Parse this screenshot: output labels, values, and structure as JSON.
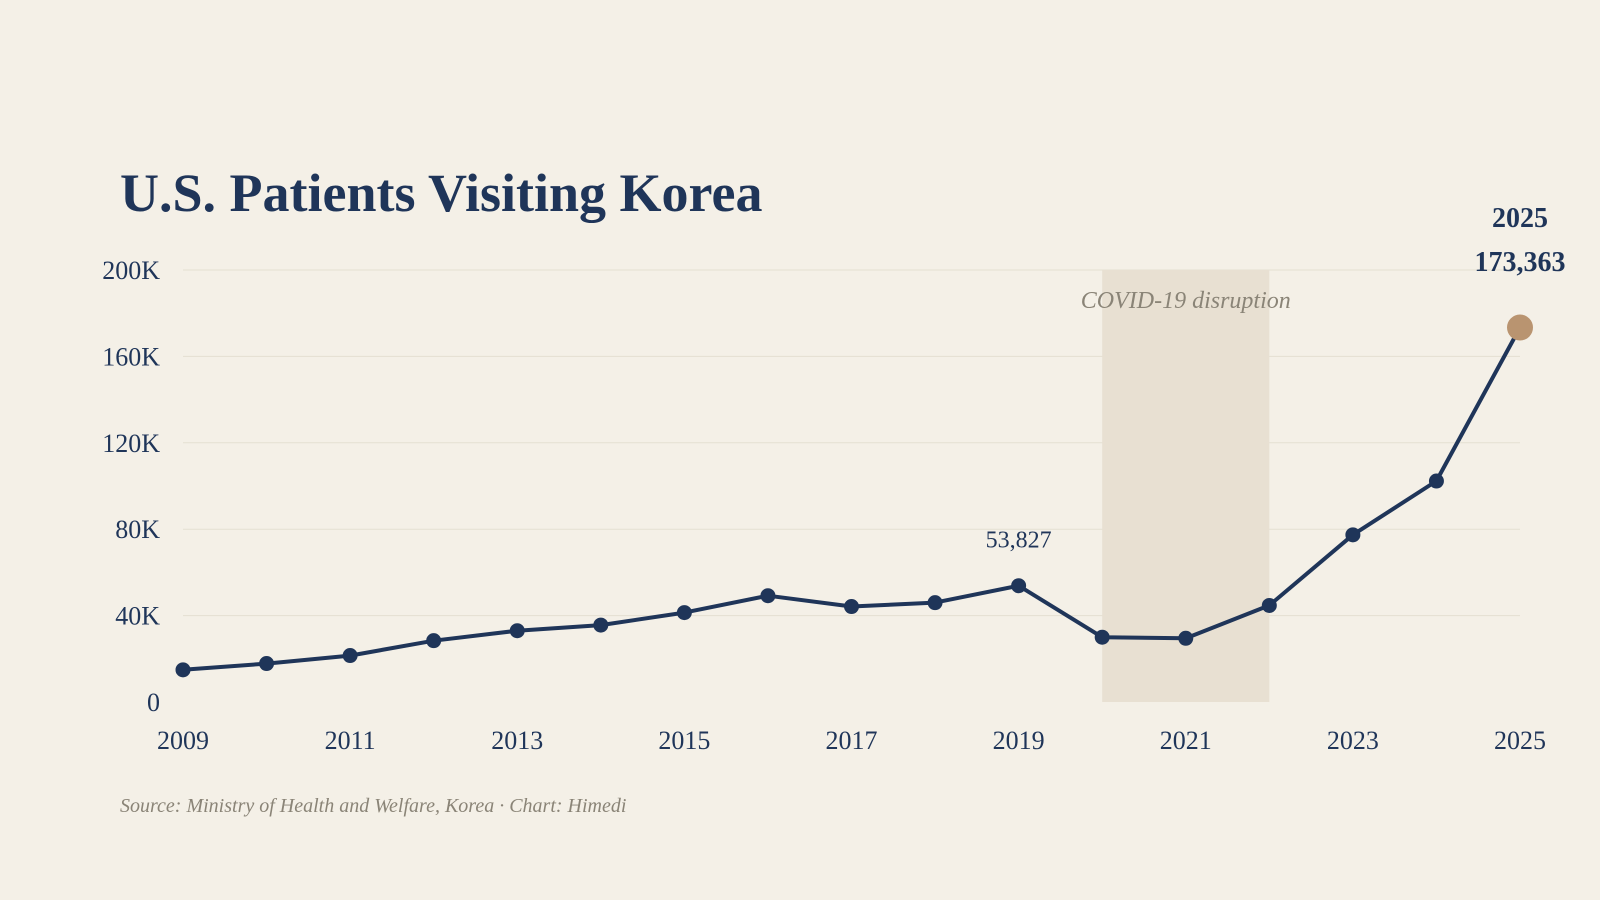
{
  "chart_data": {
    "type": "line",
    "title": "U.S. Patients Visiting Korea",
    "x": [
      2009,
      2010,
      2011,
      2012,
      2013,
      2014,
      2015,
      2016,
      2017,
      2018,
      2019,
      2020,
      2021,
      2022,
      2023,
      2024,
      2025
    ],
    "values": [
      14900,
      17800,
      21500,
      28400,
      33000,
      35600,
      41400,
      49200,
      44200,
      46000,
      53827,
      30000,
      29500,
      44700,
      77400,
      102300,
      173363
    ],
    "ylim": [
      0,
      200000
    ],
    "yticks": [
      0,
      40000,
      80000,
      120000,
      160000,
      200000
    ],
    "ytick_labels": [
      "0",
      "40K",
      "80K",
      "120K",
      "160K",
      "200K"
    ],
    "xticks": [
      2009,
      2011,
      2013,
      2015,
      2017,
      2019,
      2021,
      2023,
      2025
    ],
    "xtick_labels": [
      "2009",
      "2011",
      "2013",
      "2015",
      "2017",
      "2019",
      "2021",
      "2023",
      "2025"
    ],
    "grid": true,
    "shaded_band": {
      "x_start": 2020,
      "x_end": 2022,
      "label": "COVID-19 disruption"
    },
    "annotations": {
      "peak_2019": {
        "x": 2019,
        "label": "53,827"
      },
      "final": {
        "x": 2025,
        "year_label": "2025",
        "value_label": "173,363"
      }
    },
    "colors": {
      "line": "#1f3559",
      "final_point": "#b99470",
      "band": "#e8e0d2",
      "background": "#f4f0e7"
    },
    "source": "Source: Ministry of Health and Welfare, Korea  ·  Chart: Himedi"
  }
}
